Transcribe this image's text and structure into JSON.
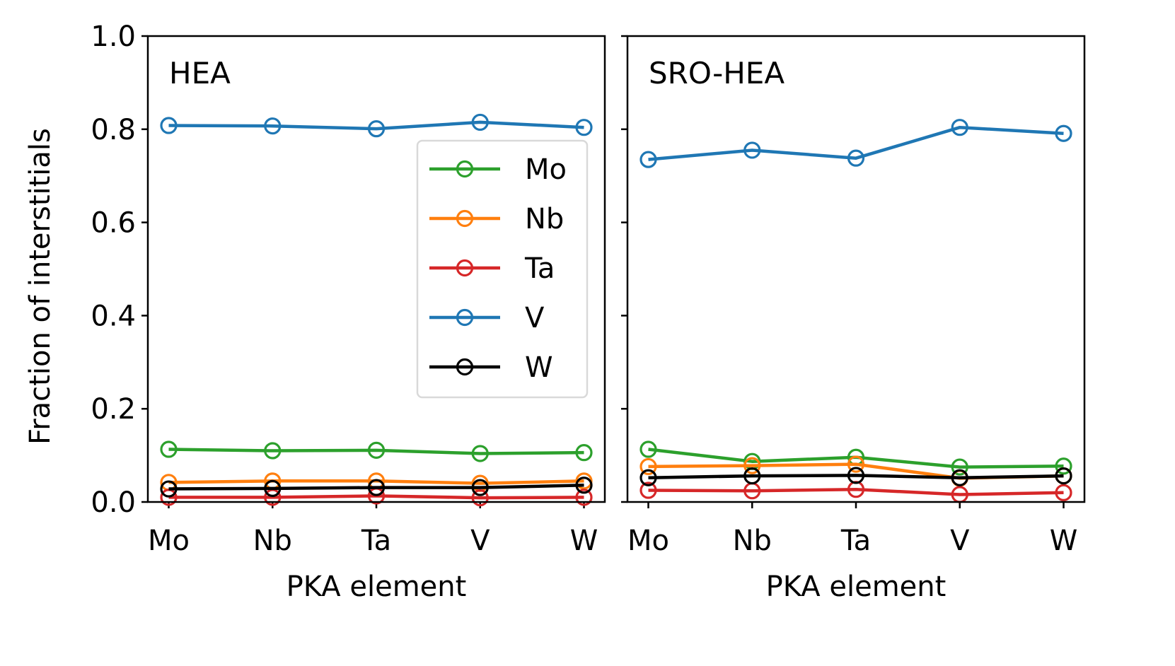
{
  "ylabel": "Fraction of interstitials",
  "legend": {
    "placement": "inside first panel, right side",
    "entries": [
      {
        "label": "Mo",
        "color": "#2ca02c"
      },
      {
        "label": "Nb",
        "color": "#ff7f0e"
      },
      {
        "label": "Ta",
        "color": "#d62728"
      },
      {
        "label": "V",
        "color": "#1f77b4"
      },
      {
        "label": "W",
        "color": "#000000"
      }
    ]
  },
  "chart_data": [
    {
      "type": "line",
      "panel_label": "HEA",
      "xlabel": "PKA element",
      "ylabel": "Fraction of interstitials",
      "categories": [
        "Mo",
        "Nb",
        "Ta",
        "V",
        "W"
      ],
      "ylim": [
        0.0,
        1.0
      ],
      "yticks": [
        "0.0",
        "0.2",
        "0.4",
        "0.6",
        "0.8",
        "1.0"
      ],
      "grid": false,
      "series": [
        {
          "name": "Mo",
          "color": "#2ca02c",
          "values": [
            0.113,
            0.11,
            0.111,
            0.104,
            0.106
          ]
        },
        {
          "name": "Nb",
          "color": "#ff7f0e",
          "values": [
            0.042,
            0.045,
            0.045,
            0.04,
            0.045
          ]
        },
        {
          "name": "Ta",
          "color": "#d62728",
          "values": [
            0.01,
            0.01,
            0.013,
            0.009,
            0.01
          ]
        },
        {
          "name": "V",
          "color": "#1f77b4",
          "values": [
            0.808,
            0.807,
            0.801,
            0.815,
            0.804
          ]
        },
        {
          "name": "W",
          "color": "#000000",
          "values": [
            0.028,
            0.029,
            0.031,
            0.031,
            0.036
          ]
        }
      ]
    },
    {
      "type": "line",
      "panel_label": "SRO-HEA",
      "xlabel": "PKA element",
      "categories": [
        "Mo",
        "Nb",
        "Ta",
        "V",
        "W"
      ],
      "ylim": [
        0.0,
        1.0
      ],
      "grid": false,
      "series": [
        {
          "name": "Mo",
          "color": "#2ca02c",
          "values": [
            0.113,
            0.087,
            0.096,
            0.075,
            0.077
          ]
        },
        {
          "name": "Nb",
          "color": "#ff7f0e",
          "values": [
            0.076,
            0.078,
            0.081,
            0.051,
            0.056
          ]
        },
        {
          "name": "Ta",
          "color": "#d62728",
          "values": [
            0.025,
            0.024,
            0.027,
            0.016,
            0.02
          ]
        },
        {
          "name": "V",
          "color": "#1f77b4",
          "values": [
            0.735,
            0.755,
            0.738,
            0.804,
            0.791
          ]
        },
        {
          "name": "W",
          "color": "#000000",
          "values": [
            0.052,
            0.056,
            0.057,
            0.052,
            0.056
          ]
        }
      ]
    }
  ]
}
